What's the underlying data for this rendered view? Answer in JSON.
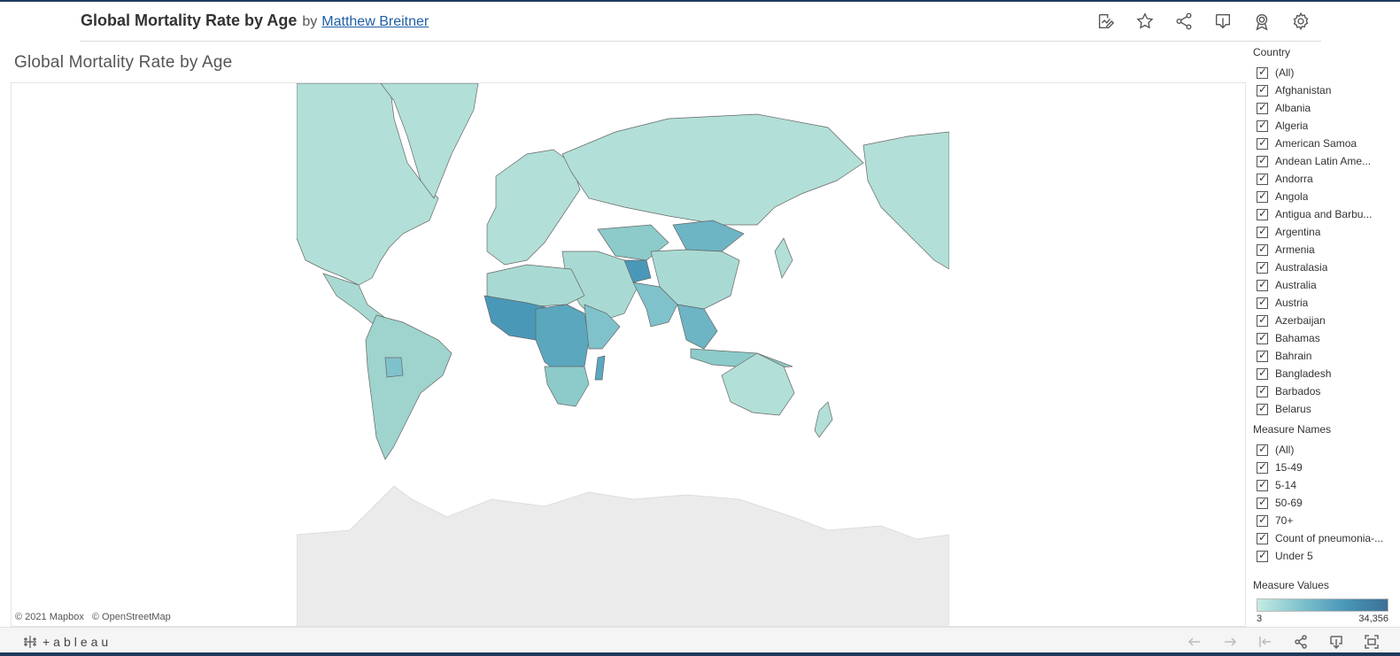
{
  "header": {
    "title": "Global Mortality Rate by Age",
    "by": "by",
    "author": "Matthew Breitner",
    "toolbar_icons": [
      "edit-icon",
      "star-icon",
      "share-icon",
      "download-icon",
      "badge-icon",
      "gear-icon"
    ]
  },
  "dashboard": {
    "title": "Global Mortality Rate by Age"
  },
  "map": {
    "attribution_mapbox": "© 2021 Mapbox",
    "attribution_osm": "© OpenStreetMap"
  },
  "filters": {
    "country": {
      "title": "Country",
      "items": [
        "(All)",
        "Afghanistan",
        "Albania",
        "Algeria",
        "American Samoa",
        "Andean Latin Ame...",
        "Andorra",
        "Angola",
        "Antigua and Barbu...",
        "Argentina",
        "Armenia",
        "Australasia",
        "Australia",
        "Austria",
        "Azerbaijan",
        "Bahamas",
        "Bahrain",
        "Bangladesh",
        "Barbados",
        "Belarus"
      ]
    },
    "measure_names": {
      "title": "Measure Names",
      "items": [
        "(All)",
        "15-49",
        "5-14",
        "50-69",
        "70+",
        "Count of pneumonia-...",
        "Under 5"
      ]
    }
  },
  "legend": {
    "title": "Measure Values",
    "min": "3",
    "max": "34,356",
    "colors": [
      "#c4ebe2",
      "#7fc2cc",
      "#4a98b8",
      "#3d6f96"
    ]
  },
  "footer": {
    "logo_text": "+ableau"
  }
}
